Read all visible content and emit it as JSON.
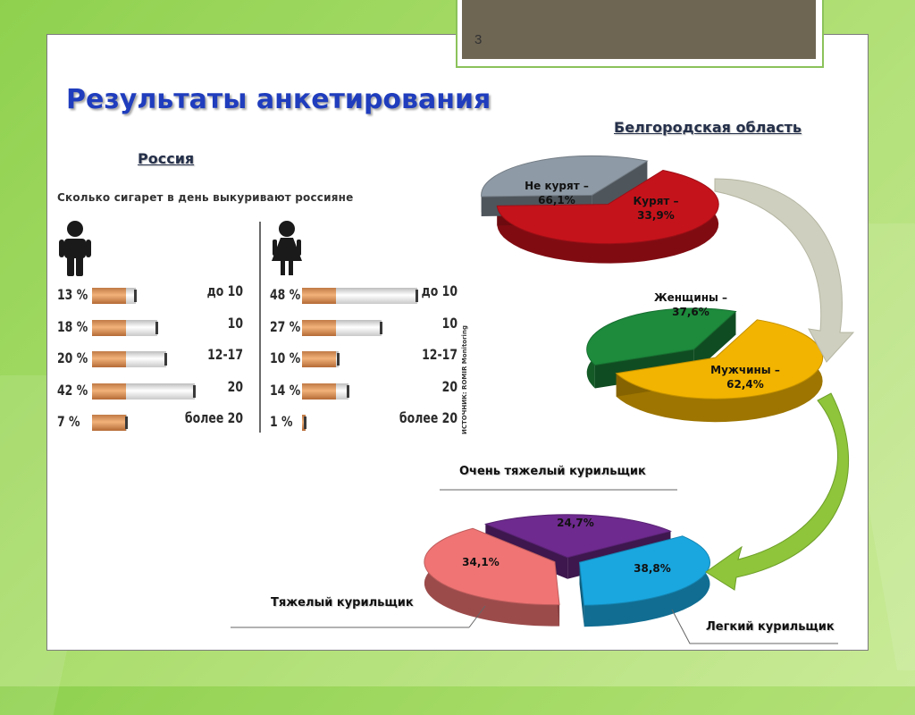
{
  "slide": {
    "page_number": "3",
    "title": "Результаты анкетирования"
  },
  "colors": {
    "title": "#1f3dbd",
    "background": "#8fd14f",
    "filter": "#e8a060",
    "cigarette": "#ffffff"
  },
  "russia": {
    "heading": "Россия",
    "chart_title": "Сколько сигарет в день выкуривают россияне",
    "source": "ИСТОЧНИК: ROMIR Monitoring",
    "men_icon": "male-person-icon",
    "women_icon": "female-person-icon"
  },
  "belgorod": {
    "heading": "Белгородская область",
    "labels": {
      "nonsmokers_line1": "Не курят –",
      "nonsmokers_line2": "66,1%",
      "smokers_line1": "Курят –",
      "smokers_line2": "33,9%",
      "women_line1": "Женщины –",
      "women_line2": "37,6%",
      "men_line1": "Мужчины –",
      "men_line2": "62,4%",
      "very_heavy_pct": "24,7%",
      "heavy_pct": "34,1%",
      "light_pct": "38,8%"
    },
    "categories": {
      "very_heavy": "Очень тяжелый курильщик",
      "heavy": "Тяжелый  курильщик",
      "light": "Легкий курильщик"
    }
  },
  "chart_data": [
    {
      "type": "bar",
      "title": "Сколько сигарет в день выкуривают россияне",
      "group": "men",
      "categories": [
        "до 10",
        "10",
        "12-17",
        "20",
        "более 20"
      ],
      "values": [
        13,
        18,
        20,
        42,
        7
      ],
      "value_labels": [
        "13 %",
        "18 %",
        "20 %",
        "42 %",
        "7 %"
      ],
      "bar_lengths": [
        0.35,
        0.52,
        0.59,
        0.82,
        0.28
      ]
    },
    {
      "type": "bar",
      "group": "women",
      "categories": [
        "до 10",
        "10",
        "12-17",
        "20",
        "более 20"
      ],
      "values": [
        48,
        27,
        10,
        14,
        1
      ],
      "value_labels": [
        "48 %",
        "27 %",
        "10 %",
        "14 %",
        "1 %"
      ],
      "bar_lengths": [
        0.87,
        0.6,
        0.28,
        0.35,
        0.03
      ]
    },
    {
      "type": "pie",
      "labels": [
        "Не курят",
        "Курят"
      ],
      "values": [
        66.1,
        33.9
      ],
      "colors": [
        "#c5131b",
        "#8e9aa5"
      ]
    },
    {
      "type": "pie",
      "labels": [
        "Женщины",
        "Мужчины"
      ],
      "values": [
        37.6,
        62.4
      ],
      "colors": [
        "#1d8a3c",
        "#f2b400"
      ]
    },
    {
      "type": "pie",
      "labels": [
        "Очень тяжелый курильщик",
        "Тяжелый  курильщик",
        "Легкий курильщик"
      ],
      "values": [
        24.7,
        34.1,
        38.8
      ],
      "colors": [
        "#6e2a8e",
        "#1aa7e0",
        "#f07474"
      ]
    }
  ]
}
